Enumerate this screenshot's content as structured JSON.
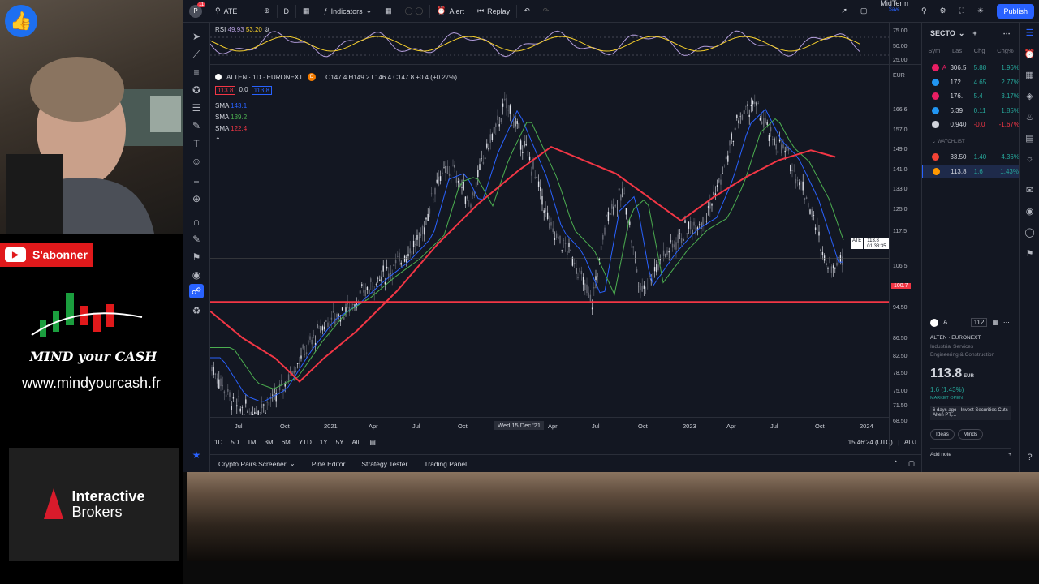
{
  "stream": {
    "subscribe_label": "S'abonner",
    "brand_logo_text": "MIND your CASH",
    "website": "www.mindyourcash.fr",
    "sponsor_line1": "Interactive",
    "sponsor_line2": "Brokers"
  },
  "topbar": {
    "avatar_badge": "11",
    "symbol": "ATE",
    "interval": "D",
    "indicators_label": "Indicators",
    "alert_label": "Alert",
    "replay_label": "Replay",
    "layout_name": "MidTerm",
    "layout_status": "Save",
    "publish_label": "Publish"
  },
  "rsi": {
    "label": "RSI",
    "value1": "49.93",
    "value2": "53.20",
    "scale": [
      "75.00",
      "50.00",
      "25.00"
    ]
  },
  "legend": {
    "title": "ALTEN · 1D · EURONEXT",
    "ohlc": "O147.4  H149.2  L146.4  C147.8  +0.4 (+0.27%)",
    "bid": "113.8",
    "spread": "0.0",
    "ask": "113.8",
    "currency": "EUR",
    "sma1_label": "SMA",
    "sma1_value": "143.1",
    "sma2_label": "SMA",
    "sma2_value": "139.2",
    "sma3_label": "SMA",
    "sma3_value": "122.4"
  },
  "price_axis": [
    "166.6",
    "157.0",
    "149.0",
    "141.0",
    "133.0",
    "125.0",
    "117.5",
    "106.5",
    "100.7",
    "94.50",
    "86.50",
    "82.50",
    "78.50",
    "75.00",
    "71.50",
    "68.50"
  ],
  "last_price_tag": {
    "symbol": "ATE",
    "price": "113.8",
    "countdown": "01:38:35"
  },
  "horizontal_line_price": "100.7",
  "time_axis": [
    "Jul",
    "Oct",
    "2021",
    "Apr",
    "Jul",
    "Oct",
    "Wed 15 Dec '21",
    "Apr",
    "Jul",
    "Oct",
    "2023",
    "Apr",
    "Jul",
    "Oct",
    "2024"
  ],
  "range_buttons": [
    "1D",
    "5D",
    "1M",
    "3M",
    "6M",
    "YTD",
    "1Y",
    "5Y",
    "All"
  ],
  "clock": "15:46:24 (UTC)",
  "adj_label": "ADJ",
  "bottom_panels": [
    "Crypto Pairs Screener",
    "Pine Editor",
    "Strategy Tester",
    "Trading Panel"
  ],
  "watchlist": {
    "title": "SECTO",
    "columns": [
      "Sym",
      "Las",
      "Chg",
      "Chg%"
    ],
    "rows": [
      {
        "sym": "A",
        "last": "306.5",
        "chg": "5.88",
        "chgp": "1.96%",
        "color": "#e91e63",
        "up": true
      },
      {
        "sym": "",
        "last": "172.",
        "chg": "4.65",
        "chgp": "2.77%",
        "color": "#2196f3",
        "up": true
      },
      {
        "sym": "",
        "last": "176.",
        "chg": "5.4",
        "chgp": "3.17%",
        "color": "#e91e63",
        "up": true
      },
      {
        "sym": "",
        "last": "6.39",
        "chg": "0.11",
        "chgp": "1.85%",
        "color": "#2196f3",
        "up": true
      },
      {
        "sym": "",
        "last": "0.940",
        "chg": "-0.0",
        "chgp": "-1.67%",
        "color": "#d1d4dc",
        "up": false
      }
    ],
    "section_label": "WATCHLIST",
    "section_rows": [
      {
        "sym": "",
        "last": "33.50",
        "chg": "1.40",
        "chgp": "4.36%",
        "color": "#f44336",
        "up": true
      },
      {
        "sym": "",
        "last": "113.8",
        "chg": "1.6",
        "chgp": "1.43%",
        "color": "#ff9800",
        "up": true
      }
    ]
  },
  "detail": {
    "symbol_short": "A.",
    "count": "112",
    "name": "ALTEN",
    "exchange": "EURONEXT",
    "sector": "Industrial Services",
    "industry": "Engineering & Construction",
    "price": "113.8",
    "currency": "EUR",
    "change": "1.6 (1.43%)",
    "market_status": "MARKET OPEN",
    "news_time": "6 days ago",
    "news_text": "Invest Securities Cuts Alten PT,...",
    "ideas_label": "Ideas",
    "minds_label": "Minds",
    "add_note_label": "Add note"
  },
  "colors": {
    "background": "#131722",
    "sma_fast": "#2962ff",
    "sma_mid": "#4caf50",
    "sma_slow": "#f23645",
    "hline": "#f23645",
    "rsi_line": "#b39ddb",
    "accent": "#2962ff"
  }
}
